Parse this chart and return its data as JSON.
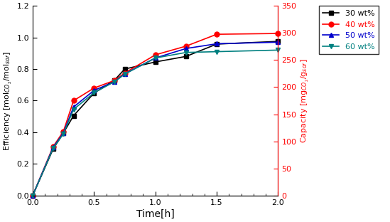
{
  "time": [
    0,
    0.167,
    0.25,
    0.333,
    0.5,
    0.667,
    0.75,
    1.0,
    1.25,
    1.5,
    2.0
  ],
  "series": [
    {
      "key": "30wt",
      "efficiency": [
        0,
        0.295,
        0.395,
        0.505,
        0.648,
        0.73,
        0.8,
        0.845,
        0.88,
        0.958,
        0.975
      ],
      "color": "#000000",
      "marker": "s",
      "label": "30 wt%",
      "label_color": "#000000"
    },
    {
      "key": "40wt",
      "efficiency": [
        0,
        0.31,
        0.405,
        0.6,
        0.68,
        0.728,
        0.775,
        0.89,
        0.945,
        1.02,
        1.025
      ],
      "color": "#ff0000",
      "marker": "o",
      "label": "40 wt%",
      "label_color": "#ff0000"
    },
    {
      "key": "50wt",
      "efficiency": [
        0,
        0.305,
        0.395,
        0.56,
        0.665,
        0.72,
        0.77,
        0.87,
        0.93,
        0.96,
        0.97
      ],
      "color": "#0000cc",
      "marker": "^",
      "label": "50 wt%",
      "label_color": "#0000cc"
    },
    {
      "key": "60wt",
      "efficiency": [
        0,
        0.3,
        0.39,
        0.545,
        0.65,
        0.72,
        0.768,
        0.87,
        0.905,
        0.91,
        0.92
      ],
      "color": "#008080",
      "marker": "v",
      "label": "60 wt%",
      "label_color": "#008080"
    }
  ],
  "left_ylabel": "Efficiency [mol$_{CO_2}$/mol$_{sor}$]",
  "right_ylabel": "Capacity [mg$_{CO_2}$/g$_{sor}$]",
  "xlabel": "Time[h]",
  "left_ylim": [
    0,
    1.2
  ],
  "right_ylim": [
    0,
    350
  ],
  "xlim": [
    0,
    2.0
  ],
  "left_yticks": [
    0.0,
    0.2,
    0.4,
    0.6,
    0.8,
    1.0,
    1.2
  ],
  "right_yticks": [
    0,
    50,
    100,
    150,
    200,
    250,
    300,
    350
  ],
  "xticks": [
    0,
    0.5,
    1.0,
    1.5,
    2.0
  ],
  "right_ylabel_color": "#ff0000",
  "right_spine_color": "#ff0000",
  "markersize": 5,
  "linewidth": 1.2,
  "figsize": [
    5.49,
    3.12
  ],
  "dpi": 100
}
